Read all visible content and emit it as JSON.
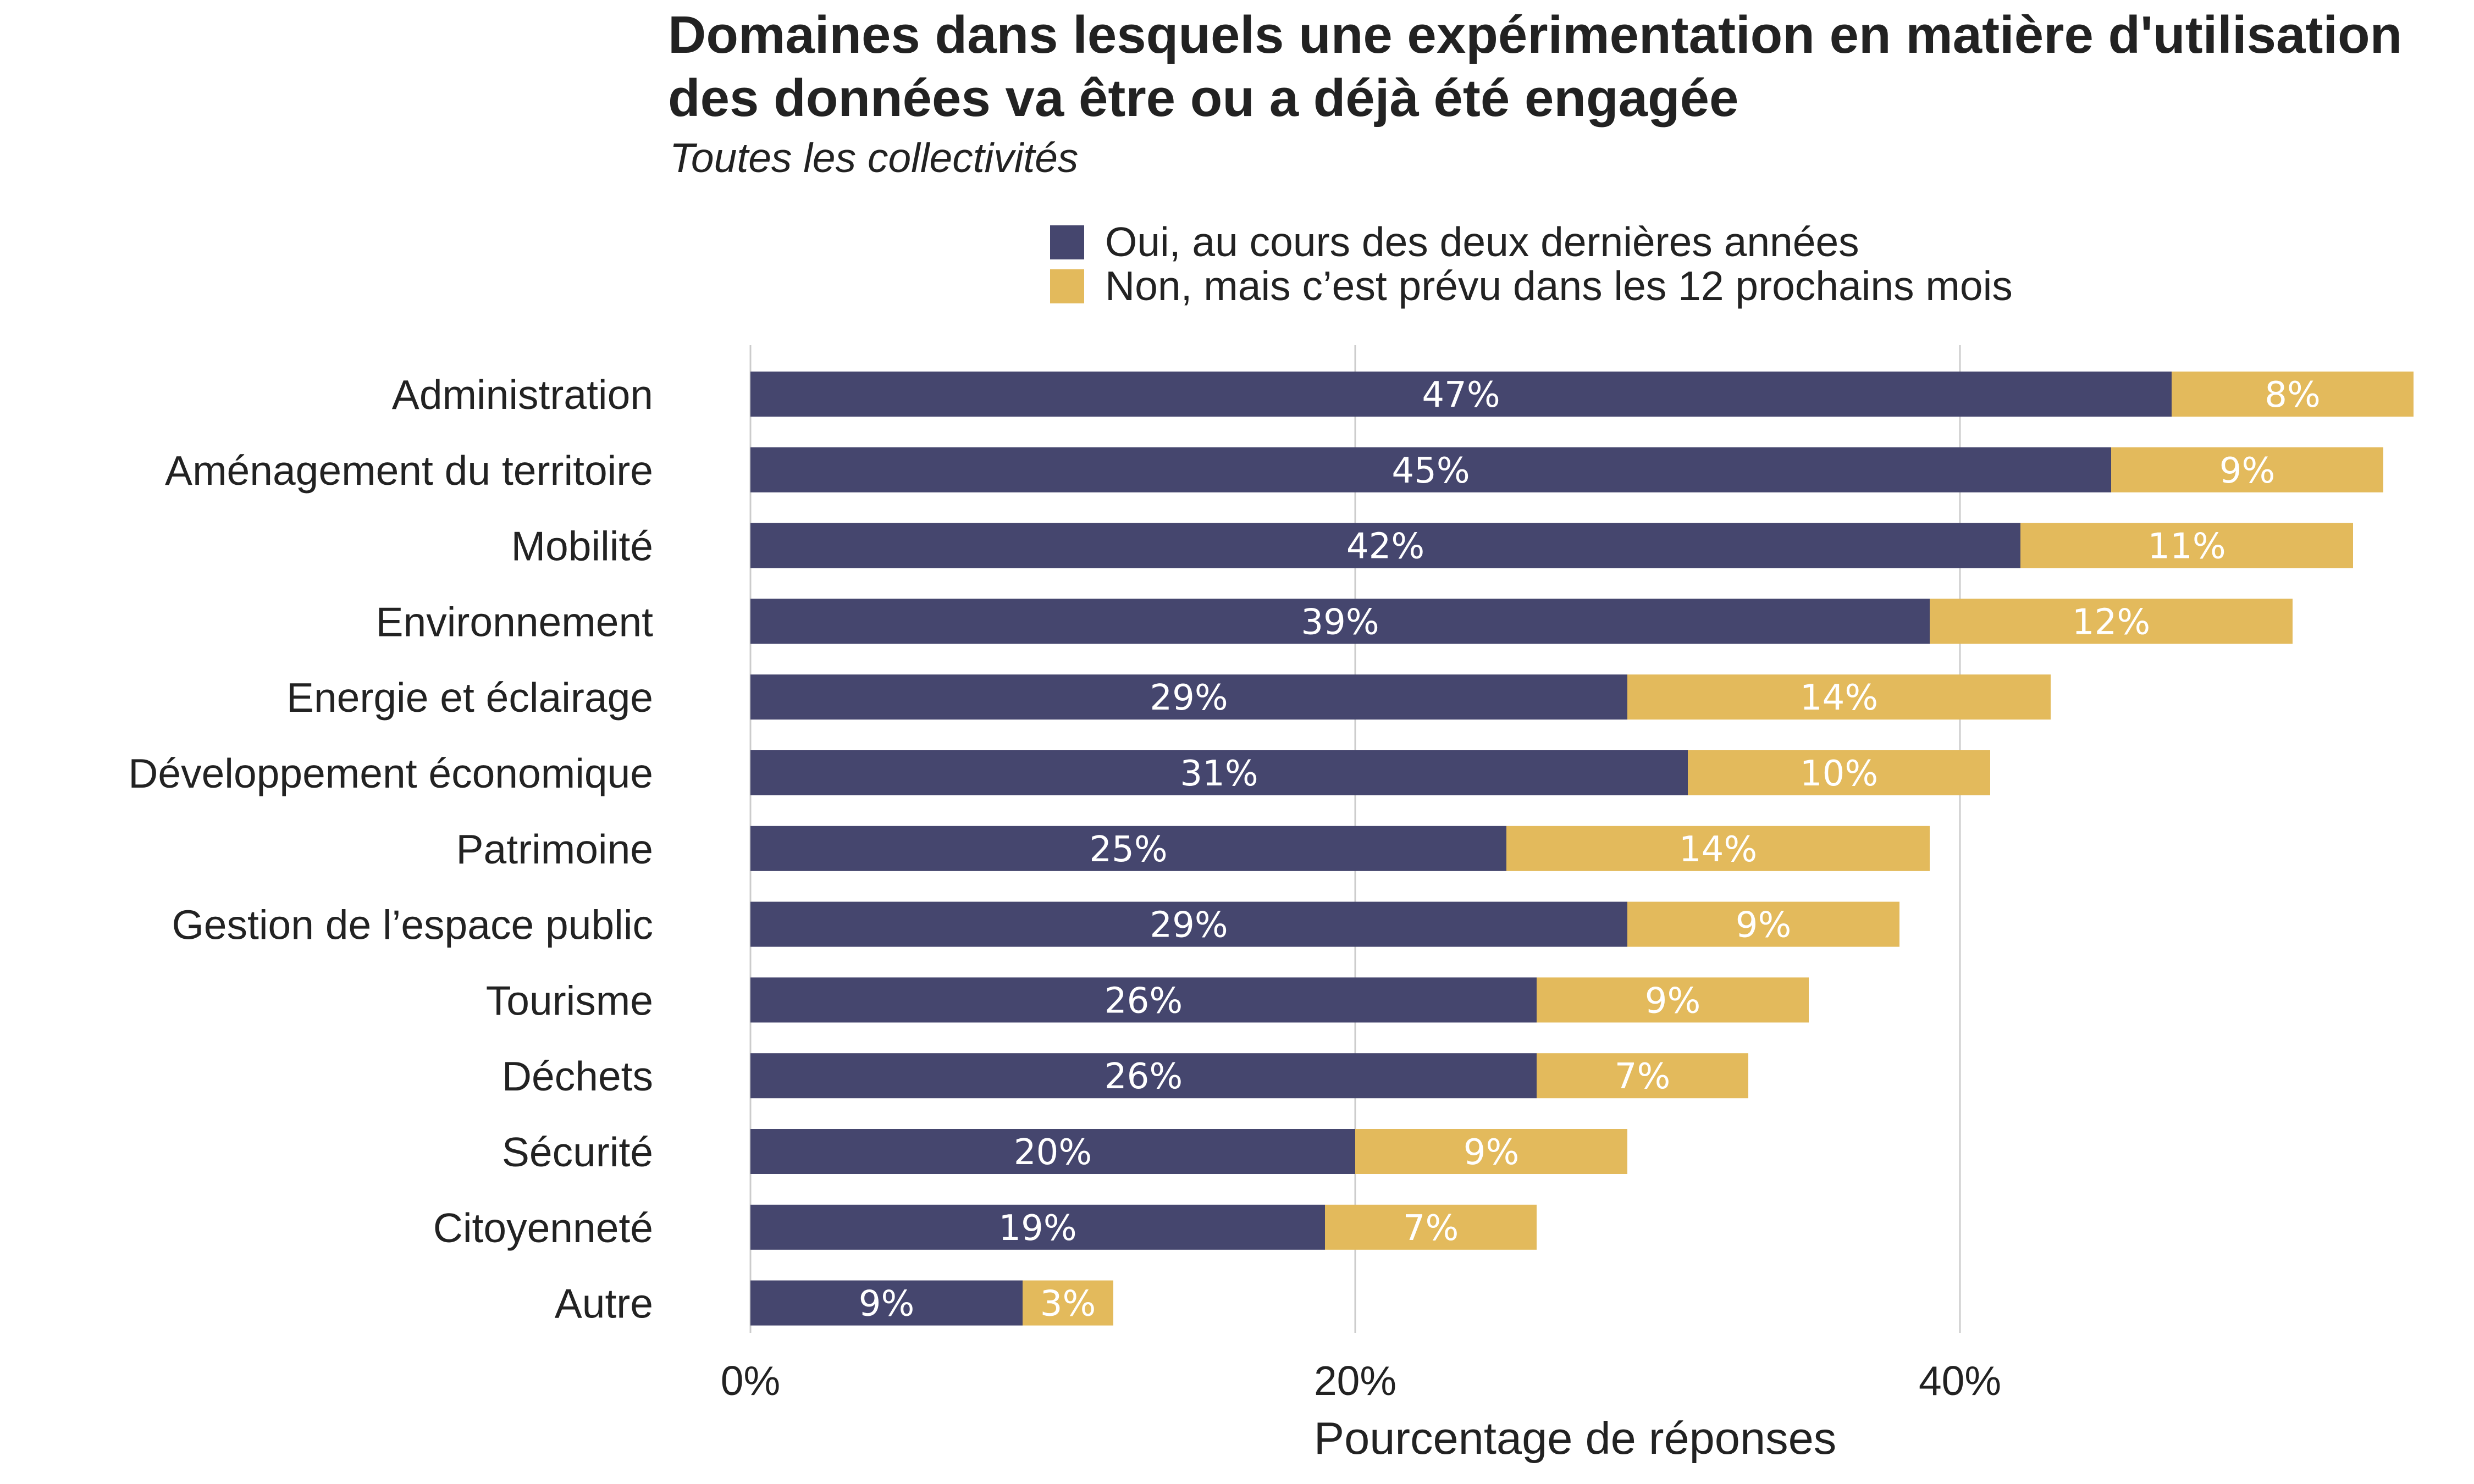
{
  "chart_data": {
    "type": "bar",
    "orientation": "horizontal",
    "stacked": true,
    "title": "Domaines dans lesquels une expérimentation en matière d'utilisation des données va être ou a déjà été engagée",
    "subtitle": "Toutes les collectivités",
    "xlabel": "Pourcentage de réponses",
    "ylabel": "",
    "xlim": [
      0,
      56
    ],
    "x_ticks": [
      0,
      20,
      40
    ],
    "x_tick_labels": [
      "0%",
      "20%",
      "40%"
    ],
    "grid": true,
    "legend_placement": "top",
    "categories": [
      "Administration",
      "Aménagement du territoire",
      "Mobilité",
      "Environnement",
      "Energie et éclairage",
      "Développement économique",
      "Patrimoine",
      "Gestion de l’espace public",
      "Tourisme",
      "Déchets",
      "Sécurité",
      "Citoyenneté",
      "Autre"
    ],
    "series": [
      {
        "name": "Oui, au cours des deux dernières années",
        "color": "#45466e",
        "values": [
          47,
          45,
          42,
          39,
          29,
          31,
          25,
          29,
          26,
          26,
          20,
          19,
          9
        ],
        "labels": [
          "47%",
          "45%",
          "42%",
          "39%",
          "29%",
          "31%",
          "25%",
          "29%",
          "26%",
          "26%",
          "20%",
          "19%",
          "9%"
        ]
      },
      {
        "name": "Non, mais c’est prévu dans les 12 prochains mois",
        "color": "#e3ba5c",
        "values": [
          8,
          9,
          11,
          12,
          14,
          10,
          14,
          9,
          9,
          7,
          9,
          7,
          3
        ],
        "labels": [
          "8%",
          "9%",
          "11%",
          "12%",
          "14%",
          "10%",
          "14%",
          "9%",
          "9%",
          "7%",
          "9%",
          "7%",
          "3%"
        ]
      }
    ]
  }
}
